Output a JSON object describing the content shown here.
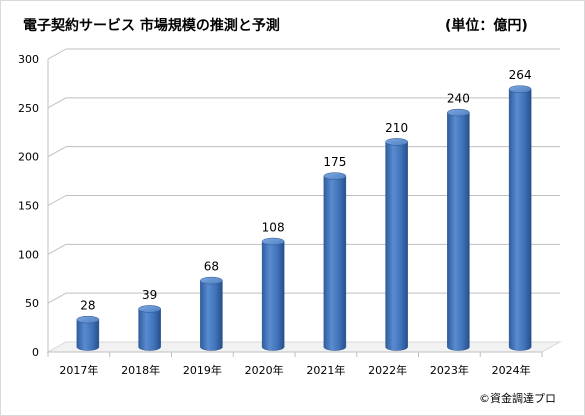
{
  "title": "電子契約サービス 市場規模の推測と予測",
  "unit_label": "(単位：億円)",
  "credit": "©資金調達プロ",
  "colors": {
    "bar_body": "#3F72B8",
    "bar_light": "#6D9BD8",
    "bar_dark": "#2A5491",
    "grid": "#bfbfbf",
    "floor": "#d9d9d9"
  },
  "chart_data": {
    "type": "bar",
    "style": "3d-cylinder",
    "categories": [
      "2017年",
      "2018年",
      "2019年",
      "2020年",
      "2021年",
      "2022年",
      "2023年",
      "2024年"
    ],
    "values": [
      28,
      39,
      68,
      108,
      175,
      210,
      240,
      264
    ],
    "data_labels": [
      "28",
      "39",
      "68",
      "108",
      "175",
      "210",
      "240",
      "264"
    ],
    "ylim": [
      0,
      300
    ],
    "yticks": [
      0,
      50,
      100,
      150,
      200,
      250,
      300
    ],
    "ytick_labels": [
      "0",
      "50",
      "100",
      "150",
      "200",
      "250",
      "300"
    ],
    "grid": true,
    "legend": "none",
    "xlabel": "",
    "ylabel": ""
  }
}
